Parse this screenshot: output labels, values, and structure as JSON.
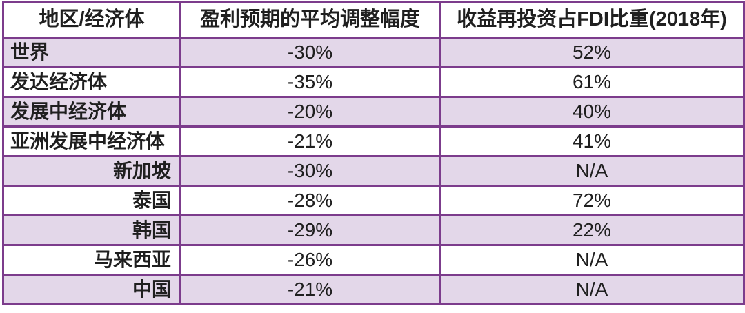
{
  "chart_data": {
    "type": "table",
    "columns": [
      "地区/经济体",
      "盈利预期的平均调整幅度",
      "收益再投资占FDI比重(2018年)"
    ],
    "rows": [
      {
        "region": "世界",
        "adjustment": "-30%",
        "fdi_share": "52%",
        "align": "left"
      },
      {
        "region": "发达经济体",
        "adjustment": "-35%",
        "fdi_share": "61%",
        "align": "left"
      },
      {
        "region": "发展中经济体",
        "adjustment": "-20%",
        "fdi_share": "40%",
        "align": "left"
      },
      {
        "region": "亚洲发展中经济体",
        "adjustment": "-21%",
        "fdi_share": "41%",
        "align": "left"
      },
      {
        "region": "新加坡",
        "adjustment": "-30%",
        "fdi_share": "N/A",
        "align": "right"
      },
      {
        "region": "泰国",
        "adjustment": "-28%",
        "fdi_share": "72%",
        "align": "right"
      },
      {
        "region": "韩国",
        "adjustment": "-29%",
        "fdi_share": "22%",
        "align": "right"
      },
      {
        "region": "马来西亚",
        "adjustment": "-26%",
        "fdi_share": "N/A",
        "align": "right"
      },
      {
        "region": "中国",
        "adjustment": "-21%",
        "fdi_share": "N/A",
        "align": "right"
      }
    ]
  },
  "colors": {
    "border": "#7c3c8c",
    "band": "#e3d7e9",
    "row_white": "#ffffff",
    "text": "#1f1f1f",
    "background": "#ffffff"
  }
}
